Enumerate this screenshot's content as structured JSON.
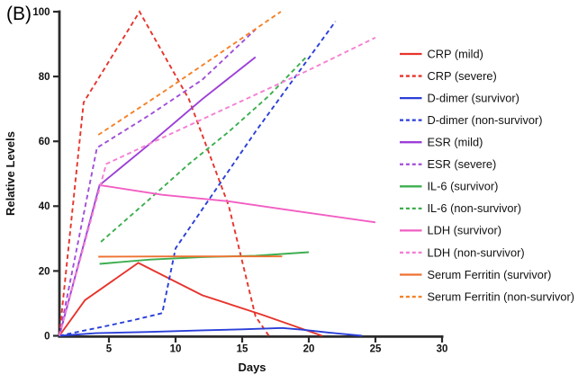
{
  "panel": {
    "label": "(B)"
  },
  "chart_data": {
    "type": "line",
    "title": "",
    "xlabel": "Days",
    "ylabel": "Relative Levels",
    "xlim": [
      0,
      30
    ],
    "ylim": [
      0,
      100
    ],
    "x_ticks": [
      5,
      10,
      15,
      20,
      25,
      30
    ],
    "y_ticks": [
      0,
      20,
      40,
      60,
      80,
      100
    ],
    "grid": false,
    "legend_position": "right",
    "axis_color": "#2b2b2b",
    "series": [
      {
        "id": "crp-mild",
        "label": "CRP (mild)",
        "color": "#e7342c",
        "style": "solid",
        "points": [
          [
            1.28,
            0
          ],
          [
            3.2,
            11
          ],
          [
            7.2,
            22.5
          ],
          [
            12,
            12.5
          ],
          [
            16.5,
            6.5
          ],
          [
            21,
            0
          ]
        ]
      },
      {
        "id": "crp-severe",
        "label": "CRP (severe)",
        "color": "#e7342c",
        "style": "dashed",
        "points": [
          [
            1.28,
            0
          ],
          [
            3.1,
            72
          ],
          [
            7.3,
            100
          ],
          [
            11,
            73
          ],
          [
            14,
            40
          ],
          [
            16,
            6
          ],
          [
            17,
            0
          ]
        ]
      },
      {
        "id": "ddimer-survivor",
        "label": "D-dimer (survivor)",
        "color": "#2a3fd8",
        "style": "solid",
        "points": [
          [
            1.28,
            0
          ],
          [
            4,
            0.8
          ],
          [
            8,
            1.2
          ],
          [
            12,
            1.7
          ],
          [
            15,
            2
          ],
          [
            18,
            2.4
          ],
          [
            19.5,
            1.9
          ],
          [
            21.5,
            1
          ],
          [
            24,
            0
          ]
        ]
      },
      {
        "id": "ddimer-nonsurvivor",
        "label": "D-dimer (non-survivor)",
        "color": "#2a3fd8",
        "style": "dashed",
        "points": [
          [
            1.28,
            0
          ],
          [
            3,
            1.5
          ],
          [
            5,
            3.2
          ],
          [
            7,
            5
          ],
          [
            9,
            7
          ],
          [
            10,
            27
          ],
          [
            13,
            45
          ],
          [
            16,
            63
          ],
          [
            19,
            80
          ],
          [
            22,
            97
          ]
        ]
      },
      {
        "id": "esr-mild",
        "label": "ESR (mild)",
        "color": "#9c3fd6",
        "style": "solid",
        "points": [
          [
            1.28,
            0
          ],
          [
            4.3,
            46.5
          ],
          [
            8,
            59
          ],
          [
            12,
            73
          ],
          [
            16,
            86
          ]
        ]
      },
      {
        "id": "esr-severe",
        "label": "ESR (severe)",
        "color": "#a04fd8",
        "style": "dashed",
        "points": [
          [
            1.28,
            0
          ],
          [
            4.1,
            58
          ],
          [
            8,
            68
          ],
          [
            12,
            79
          ],
          [
            16,
            94.5
          ]
        ]
      },
      {
        "id": "il6-survivor",
        "label": "IL-6 (survivor)",
        "color": "#3dae4f",
        "style": "solid",
        "points": [
          [
            4.3,
            22.2
          ],
          [
            8,
            23.5
          ],
          [
            12,
            24.3
          ],
          [
            16,
            24.7
          ],
          [
            20,
            25.8
          ]
        ]
      },
      {
        "id": "il6-nonsurvivor",
        "label": "IL-6 (non-survivor)",
        "color": "#3dae4f",
        "style": "dashed",
        "points": [
          [
            4.4,
            29
          ],
          [
            8,
            42
          ],
          [
            11,
            53
          ],
          [
            14,
            63
          ],
          [
            17,
            74
          ],
          [
            19.8,
            86
          ]
        ]
      },
      {
        "id": "ldh-survivor",
        "label": "LDH (survivor)",
        "color": "#f25ec3",
        "style": "solid",
        "points": [
          [
            4.3,
            46.5
          ],
          [
            9,
            43.5
          ],
          [
            14,
            41.5
          ],
          [
            19,
            38.5
          ],
          [
            25,
            35
          ]
        ]
      },
      {
        "id": "ldh-nonsurvivor",
        "label": "LDH (non-survivor)",
        "color": "#f57fd3",
        "style": "dashed",
        "points": [
          [
            1.28,
            0
          ],
          [
            4.8,
            53
          ],
          [
            10,
            63
          ],
          [
            15,
            72.5
          ],
          [
            20,
            82
          ],
          [
            25,
            92
          ]
        ]
      },
      {
        "id": "ferritin-survivor",
        "label": "Serum Ferritin (survivor)",
        "color": "#ee7130",
        "style": "solid",
        "points": [
          [
            4.2,
            24.4
          ],
          [
            10,
            24.5
          ],
          [
            14,
            24.5
          ],
          [
            18,
            24.5
          ]
        ]
      },
      {
        "id": "ferritin-nonsurvivor",
        "label": "Serum Ferritin (non-survivor)",
        "color": "#f58227",
        "style": "dashed",
        "points": [
          [
            4.2,
            62
          ],
          [
            9,
            75
          ],
          [
            17.9,
            100
          ]
        ]
      }
    ]
  }
}
